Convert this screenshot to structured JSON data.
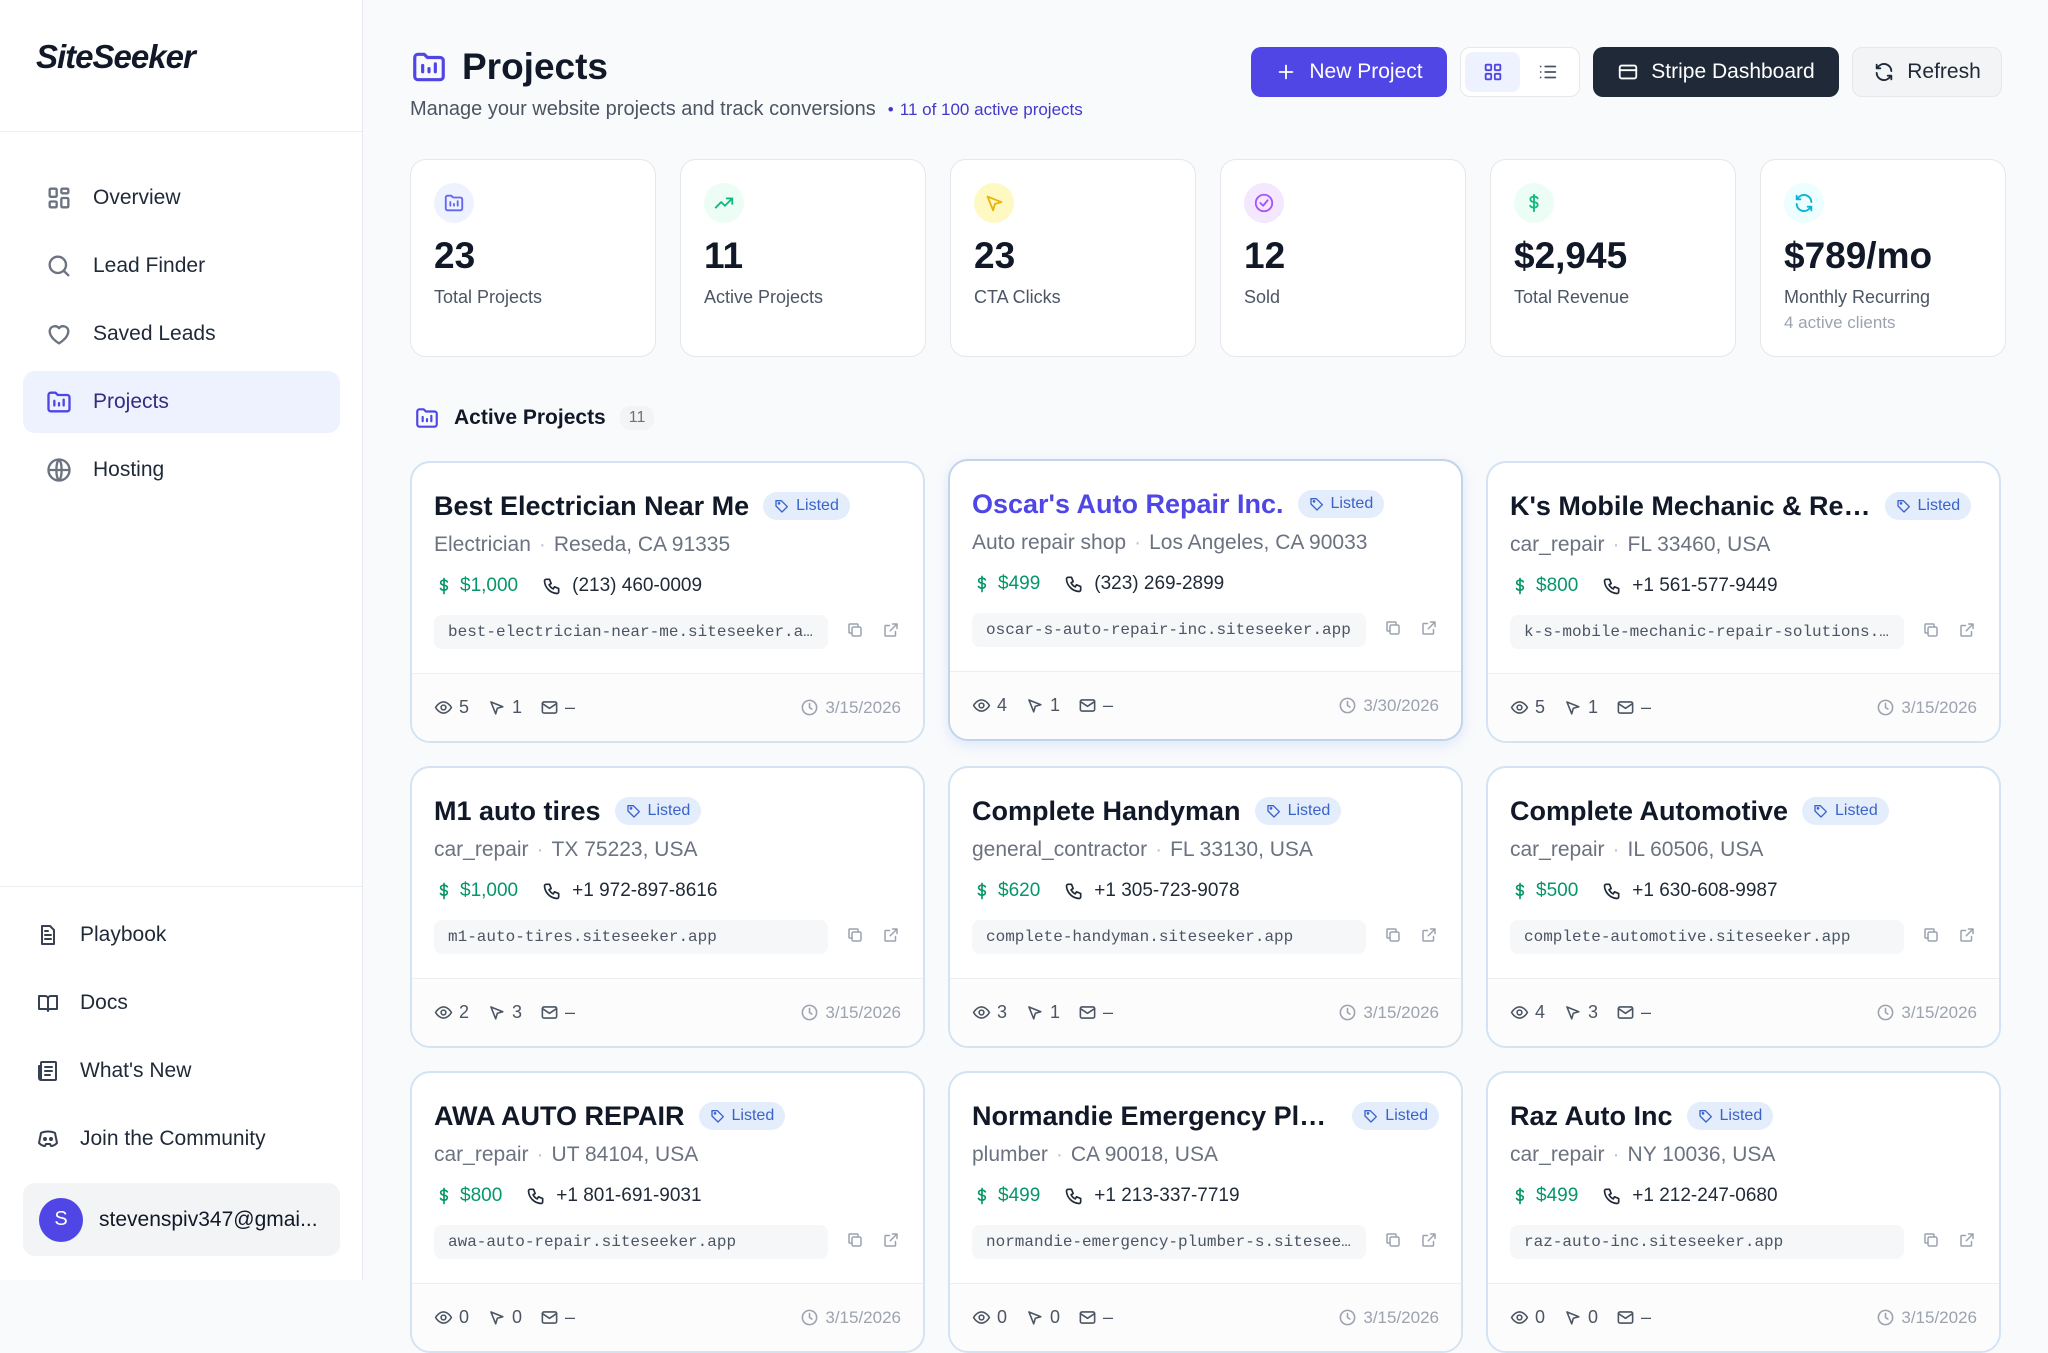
{
  "sidebar": {
    "brand": "SiteSeeker",
    "nav": [
      "Overview",
      "Lead Finder",
      "Saved Leads",
      "Projects",
      "Hosting"
    ],
    "footer": [
      "Playbook",
      "Docs",
      "What's New",
      "Join the Community"
    ],
    "user": {
      "initial": "S",
      "email": "stevenspiv347@gmai..."
    }
  },
  "header": {
    "title": "Projects",
    "subtitle": "Manage your website projects and track conversions",
    "badge": "11 of 100 active projects",
    "buttons": {
      "new_project": "New Project",
      "stripe": "Stripe Dashboard",
      "refresh": "Refresh"
    }
  },
  "stats": [
    {
      "value": "23",
      "label": "Total Projects"
    },
    {
      "value": "11",
      "label": "Active Projects"
    },
    {
      "value": "23",
      "label": "CTA Clicks"
    },
    {
      "value": "12",
      "label": "Sold"
    },
    {
      "value": "$2,945",
      "label": "Total Revenue"
    },
    {
      "value": "$789/mo",
      "label": "Monthly Recurring",
      "note": "4 active clients"
    }
  ],
  "section": {
    "title": "Active Projects",
    "count": "11"
  },
  "projects": [
    {
      "name": "Best Electrician Near Me",
      "status": "Listed",
      "category": "Electrician",
      "location": "Reseda, CA 91335",
      "price": "$1,000",
      "phone": "(213) 460-0009",
      "url": "best-electrician-near-me.siteseeker.a…",
      "views": 5,
      "clicks": 1,
      "emails": "–",
      "date": "3/15/2026"
    },
    {
      "name": "Oscar's Auto Repair Inc.",
      "status": "Listed",
      "category": "Auto repair shop",
      "location": "Los Angeles, CA 90033",
      "price": "$499",
      "phone": "(323) 269-2899",
      "url": "oscar-s-auto-repair-inc.siteseeker.app",
      "views": 4,
      "clicks": 1,
      "emails": "–",
      "date": "3/30/2026"
    },
    {
      "name": "K's Mobile Mechanic & Re…",
      "status": "Listed",
      "category": "car_repair",
      "location": "FL 33460, USA",
      "price": "$800",
      "phone": "+1 561-577-9449",
      "url": "k-s-mobile-mechanic-repair-solutions.…",
      "views": 5,
      "clicks": 1,
      "emails": "–",
      "date": "3/15/2026"
    },
    {
      "name": "M1 auto tires",
      "status": "Listed",
      "category": "car_repair",
      "location": "TX 75223, USA",
      "price": "$1,000",
      "phone": "+1 972-897-8616",
      "url": "m1-auto-tires.siteseeker.app",
      "views": 2,
      "clicks": 3,
      "emails": "–",
      "date": "3/15/2026"
    },
    {
      "name": "Complete Handyman",
      "status": "Listed",
      "category": "general_contractor",
      "location": "FL 33130, USA",
      "price": "$620",
      "phone": "+1 305-723-9078",
      "url": "complete-handyman.siteseeker.app",
      "views": 3,
      "clicks": 1,
      "emails": "–",
      "date": "3/15/2026"
    },
    {
      "name": "Complete Automotive",
      "status": "Listed",
      "category": "car_repair",
      "location": "IL 60506, USA",
      "price": "$500",
      "phone": "+1 630-608-9987",
      "url": "complete-automotive.siteseeker.app",
      "views": 4,
      "clicks": 3,
      "emails": "–",
      "date": "3/15/2026"
    },
    {
      "name": "AWA AUTO REPAIR",
      "status": "Listed",
      "category": "car_repair",
      "location": "UT 84104, USA",
      "price": "$800",
      "phone": "+1 801-691-9031",
      "url": "awa-auto-repair.siteseeker.app",
      "views": 0,
      "clicks": 0,
      "emails": "–",
      "date": "3/15/2026"
    },
    {
      "name": "Normandie Emergency Plu…",
      "status": "Listed",
      "category": "plumber",
      "location": "CA 90018, USA",
      "price": "$499",
      "phone": "+1 213-337-7719",
      "url": "normandie-emergency-plumber-s.sitesee…",
      "views": 0,
      "clicks": 0,
      "emails": "–",
      "date": "3/15/2026"
    },
    {
      "name": "Raz Auto Inc",
      "status": "Listed",
      "category": "car_repair",
      "location": "NY 10036, USA",
      "price": "$499",
      "phone": "+1 212-247-0680",
      "url": "raz-auto-inc.siteseeker.app",
      "views": 0,
      "clicks": 0,
      "emails": "–",
      "date": "3/15/2026"
    }
  ]
}
